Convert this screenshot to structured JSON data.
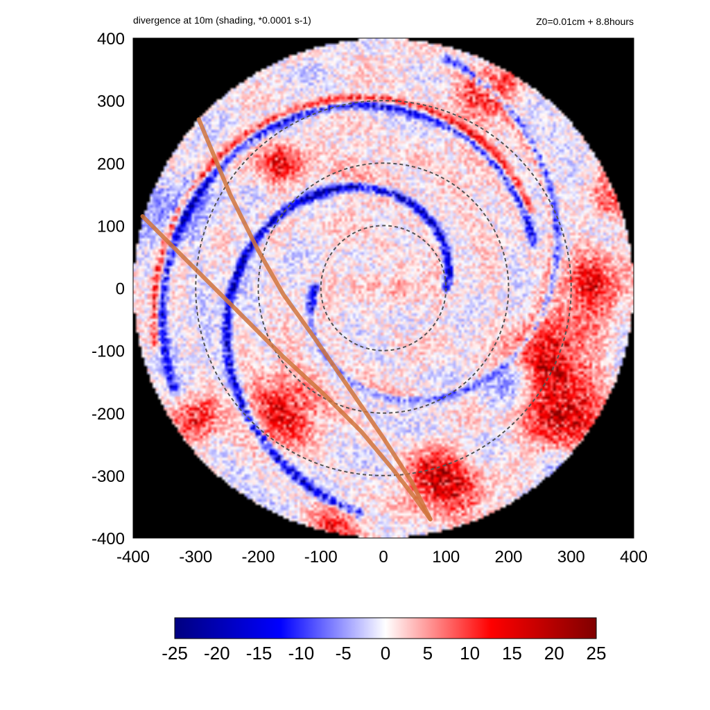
{
  "chart_data": {
    "type": "heatmap",
    "title": "divergence at 10m (shading, *0.0001 s-1)",
    "subtitle": "Z0=0.01cm  + 8.8hours",
    "xlabel": "",
    "ylabel": "",
    "xlim": [
      -400,
      400
    ],
    "ylim": [
      -400,
      400
    ],
    "x_ticks": [
      "-400",
      "-300",
      "-200",
      "-100",
      "0",
      "100",
      "200",
      "300",
      "400"
    ],
    "y_ticks": [
      "400",
      "300",
      "200",
      "100",
      "0",
      "-100",
      "-200",
      "-300",
      "-400"
    ],
    "x_tick_values": [
      -400,
      -300,
      -200,
      -100,
      0,
      100,
      200,
      300,
      400
    ],
    "y_tick_values": [
      400,
      300,
      200,
      100,
      0,
      -100,
      -200,
      -300,
      -400
    ],
    "domain_radius": 400,
    "outside_domain_color": "#000000",
    "range_rings": [
      100,
      200,
      300
    ],
    "range_ring_color": "#555555",
    "colorbar": {
      "min": -25,
      "max": 25,
      "ticks": [
        "-25",
        "-20",
        "-15",
        "-10",
        "-5",
        "0",
        "5",
        "10",
        "15",
        "20",
        "25"
      ],
      "tick_values": [
        -25,
        -20,
        -15,
        -10,
        -5,
        0,
        5,
        10,
        15,
        20,
        25
      ],
      "stops": [
        "#000080",
        "#0000ff",
        "#ffffff",
        "#ff0000",
        "#800000"
      ]
    },
    "tracks": [
      {
        "points": [
          [
            -295,
            270
          ],
          [
            -245,
            150
          ],
          [
            -200,
            60
          ],
          [
            -160,
            -10
          ],
          [
            -110,
            -80
          ],
          [
            -55,
            -160
          ],
          [
            0,
            -240
          ],
          [
            45,
            -310
          ],
          [
            75,
            -370
          ]
        ]
      },
      {
        "points": [
          [
            -385,
            115
          ],
          [
            -310,
            40
          ],
          [
            -230,
            -40
          ],
          [
            -160,
            -110
          ],
          [
            -95,
            -170
          ],
          [
            -35,
            -230
          ],
          [
            15,
            -290
          ],
          [
            50,
            -335
          ],
          [
            75,
            -370
          ]
        ]
      }
    ],
    "track_color": "#d0743c",
    "bands": [
      {
        "type": "spiral",
        "sign": "neg",
        "r0": 100,
        "theta0": 0,
        "theta1": 4.6,
        "growth": 0.28,
        "intensity": 22
      },
      {
        "type": "spiral",
        "sign": "neg",
        "r0": 110,
        "theta0": 3.14,
        "theta1": 7.6,
        "growth": 0.28,
        "intensity": 20
      },
      {
        "type": "spiral",
        "sign": "neg",
        "r0": 250,
        "theta0": 0.3,
        "theta1": 3.6,
        "growth": 0.12,
        "intensity": 20
      },
      {
        "type": "spiral",
        "sign": "pos",
        "r0": 120,
        "theta0": 3.5,
        "theta1": 7.3,
        "growth": 0.28,
        "intensity": 14
      },
      {
        "type": "spiral",
        "sign": "pos",
        "r0": 265,
        "theta0": 0.5,
        "theta1": 3.4,
        "growth": 0.12,
        "intensity": 16
      }
    ],
    "blobs": [
      {
        "x": 270,
        "y": -120,
        "r": 70,
        "v": 16
      },
      {
        "x": 330,
        "y": 10,
        "r": 50,
        "v": 14
      },
      {
        "x": 290,
        "y": -220,
        "r": 55,
        "v": 15
      },
      {
        "x": -160,
        "y": -200,
        "r": 55,
        "v": 14
      },
      {
        "x": -300,
        "y": -210,
        "r": 35,
        "v": 16
      },
      {
        "x": 80,
        "y": -300,
        "r": 45,
        "v": 14
      },
      {
        "x": 120,
        "y": -330,
        "r": 40,
        "v": 12
      },
      {
        "x": 150,
        "y": 310,
        "r": 45,
        "v": 12
      },
      {
        "x": 200,
        "y": 330,
        "r": 30,
        "v": 10
      },
      {
        "x": -170,
        "y": 200,
        "r": 35,
        "v": 14
      },
      {
        "x": -80,
        "y": -380,
        "r": 40,
        "v": 12
      },
      {
        "x": 360,
        "y": 150,
        "r": 40,
        "v": 10
      },
      {
        "x": 200,
        "y": -150,
        "r": 40,
        "v": -8
      },
      {
        "x": 300,
        "y": -300,
        "r": 45,
        "v": -10
      },
      {
        "x": -330,
        "y": 130,
        "r": 60,
        "v": -6
      },
      {
        "x": 20,
        "y": 20,
        "r": 80,
        "v": 3
      },
      {
        "x": -50,
        "y": 200,
        "r": 60,
        "v": 4
      },
      {
        "x": 150,
        "y": 220,
        "r": 50,
        "v": 3
      }
    ]
  }
}
